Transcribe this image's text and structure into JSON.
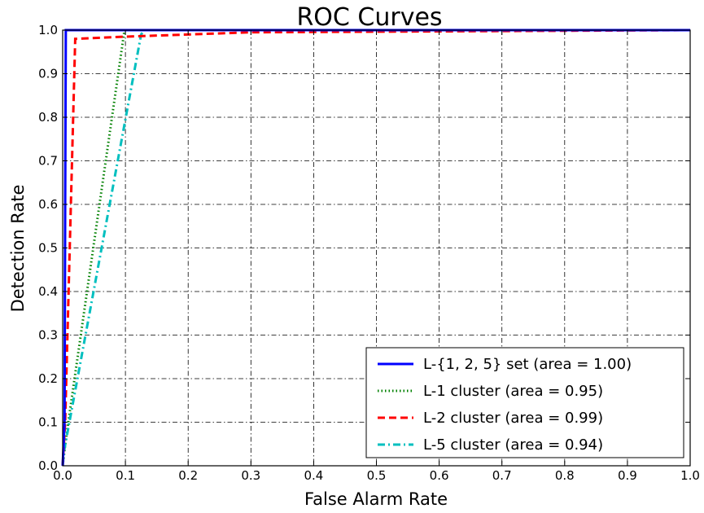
{
  "chart_data": {
    "type": "line",
    "title": "ROC Curves",
    "xlabel": "False Alarm Rate",
    "ylabel": "Detection Rate",
    "xlim": [
      0.0,
      1.0
    ],
    "ylim": [
      0.0,
      1.0
    ],
    "xticks": [
      "0.0",
      "0.1",
      "0.2",
      "0.3",
      "0.4",
      "0.5",
      "0.6",
      "0.7",
      "0.8",
      "0.9",
      "1.0"
    ],
    "yticks": [
      "0.0",
      "0.1",
      "0.2",
      "0.3",
      "0.4",
      "0.5",
      "0.6",
      "0.7",
      "0.8",
      "0.9",
      "1.0"
    ],
    "grid": true,
    "grid_style": "dash-dot",
    "legend_position": "lower-right",
    "series": [
      {
        "name": "L-{1, 2, 5} set (area = 1.00)",
        "color": "#0000ff",
        "style": "solid",
        "points": [
          [
            0.0,
            0.0
          ],
          [
            0.003,
            0.1
          ],
          [
            0.004,
            0.6
          ],
          [
            0.005,
            1.0
          ],
          [
            1.0,
            1.0
          ]
        ]
      },
      {
        "name": "L-1 cluster (area = 0.95)",
        "color": "#008000",
        "style": "dotted",
        "points": [
          [
            0.0,
            0.0
          ],
          [
            0.005,
            0.06
          ],
          [
            0.098,
            0.995
          ],
          [
            0.1,
            1.0
          ],
          [
            1.0,
            1.0
          ]
        ]
      },
      {
        "name": "L-2 cluster (area = 0.99)",
        "color": "#ff0000",
        "style": "dashed",
        "points": [
          [
            0.0,
            0.0
          ],
          [
            0.004,
            0.1
          ],
          [
            0.02,
            0.98
          ],
          [
            0.1,
            0.985
          ],
          [
            0.3,
            0.995
          ],
          [
            1.0,
            1.0
          ]
        ]
      },
      {
        "name": "L-5 cluster (area = 0.94)",
        "color": "#00bfbf",
        "style": "dashdot",
        "points": [
          [
            0.0,
            0.0
          ],
          [
            0.003,
            0.04
          ],
          [
            0.125,
            0.99
          ],
          [
            0.13,
            1.0
          ],
          [
            1.0,
            1.0
          ]
        ]
      }
    ]
  }
}
